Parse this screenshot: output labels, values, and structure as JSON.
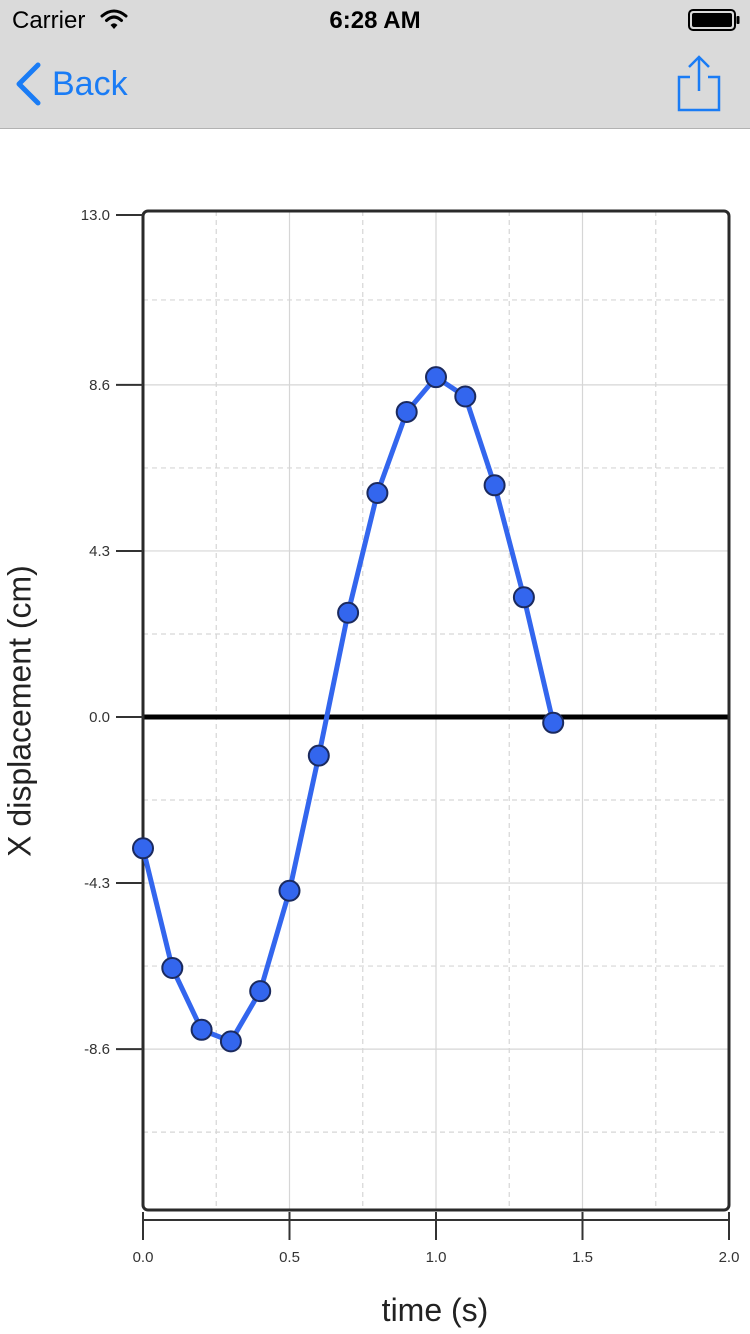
{
  "status_bar": {
    "carrier": "Carrier",
    "time": "6:28 AM"
  },
  "nav": {
    "back_label": "Back",
    "accent_color": "#1a7cf5"
  },
  "icons": {
    "back": "chevron-left-icon",
    "share": "share-icon",
    "wifi": "wifi-icon",
    "battery": "battery-icon"
  },
  "chart_data": {
    "type": "line",
    "xlabel": "time (s)",
    "ylabel": "X displacement (cm)",
    "xlim": [
      0.0,
      2.0
    ],
    "ylim": [
      -12.9,
      13.0
    ],
    "xticks": [
      0.0,
      0.5,
      1.0,
      1.5,
      2.0
    ],
    "xtick_labels": [
      "0.0",
      "0.5",
      "1.0",
      "1.5",
      "2.0"
    ],
    "yticks": [
      13.0,
      8.6,
      4.3,
      0.0,
      -4.3,
      -8.6
    ],
    "ytick_labels": [
      "13.0",
      "8.6",
      "4.3",
      "0.0",
      "-4.3",
      "-8.6"
    ],
    "grid": true,
    "zero_line": true,
    "series": [
      {
        "color": "#3366ee",
        "x": [
          0.0,
          0.1,
          0.2,
          0.3,
          0.4,
          0.5,
          0.6,
          0.7,
          0.8,
          0.9,
          1.0,
          1.1,
          1.2,
          1.3,
          1.4
        ],
        "y": [
          -3.4,
          -6.5,
          -8.1,
          -8.4,
          -7.1,
          -4.5,
          -1.0,
          2.7,
          5.8,
          7.9,
          8.8,
          8.3,
          6.0,
          3.1,
          -0.15
        ]
      }
    ]
  }
}
